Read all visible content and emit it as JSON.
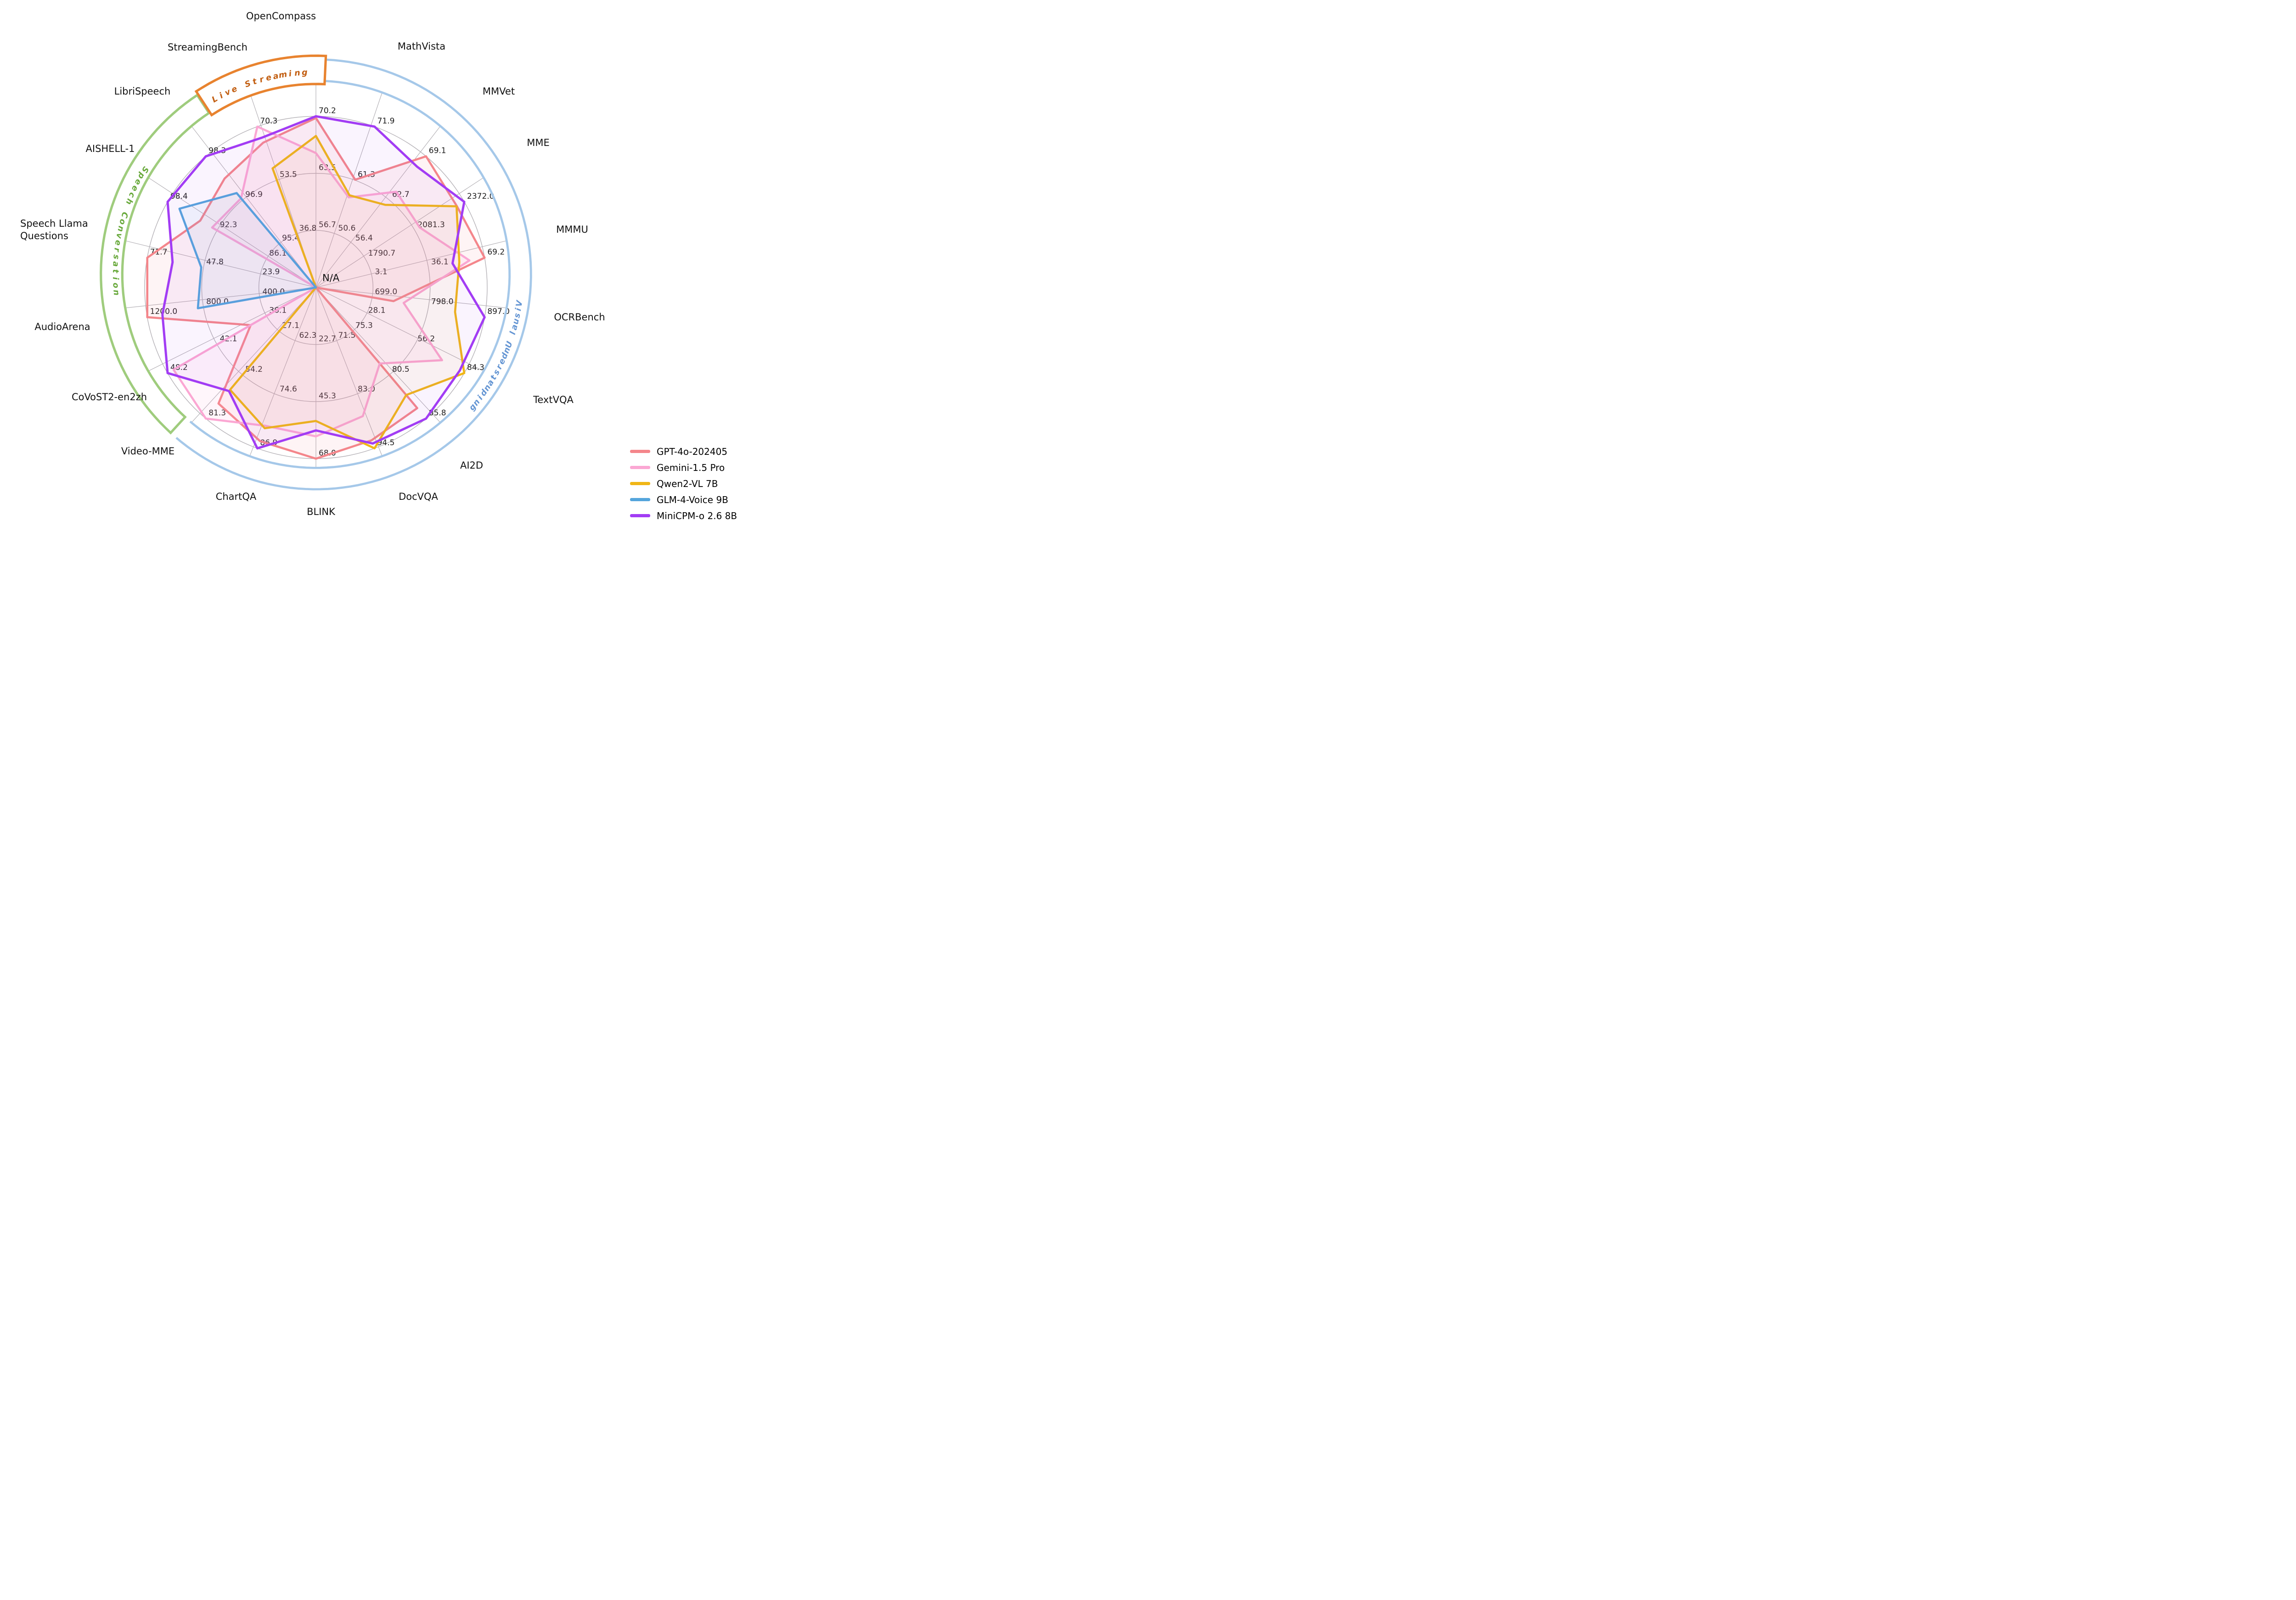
{
  "chart_data": {
    "type": "radar",
    "description": "Benchmark radar comparison across visual, speech and live-streaming tasks",
    "center_label": "N/A",
    "axes": [
      {
        "label": "OpenCompass",
        "ticks": [
          "70.2",
          "63.5",
          "56.7"
        ]
      },
      {
        "label": "MathVista",
        "ticks": [
          "71.9",
          "61.3",
          "50.6"
        ]
      },
      {
        "label": "MMVet",
        "ticks": [
          "69.1",
          "62.7",
          "56.4"
        ]
      },
      {
        "label": "MME",
        "ticks": [
          "2372.0",
          "2081.3",
          "1790.7"
        ]
      },
      {
        "label": "MMMU",
        "ticks": [
          "69.2",
          "36.1",
          "3.1"
        ]
      },
      {
        "label": "OCRBench",
        "ticks": [
          "897.0",
          "798.0",
          "699.0"
        ]
      },
      {
        "label": "TextVQA",
        "ticks": [
          "84.3",
          "56.2",
          "28.1"
        ]
      },
      {
        "label": "AI2D",
        "ticks": [
          "85.8",
          "80.5",
          "75.3"
        ]
      },
      {
        "label": "DocVQA",
        "ticks": [
          "94.5",
          "83.0",
          "71.5"
        ]
      },
      {
        "label": "BLINK",
        "ticks": [
          "68.0",
          "45.3",
          "22.7"
        ]
      },
      {
        "label": "ChartQA",
        "ticks": [
          "86.9",
          "74.6",
          "62.3"
        ]
      },
      {
        "label": "Video-MME",
        "ticks": [
          "81.3",
          "54.2",
          "27.1"
        ]
      },
      {
        "label": "CoVoST2-en2zh",
        "ticks": [
          "48.2",
          "42.1",
          "36.1"
        ]
      },
      {
        "label": "AudioArena",
        "ticks": [
          "1200.0",
          "800.0",
          "400.0"
        ]
      },
      {
        "label": "Speech Llama\nQuestions",
        "ticks": [
          "71.7",
          "47.8",
          "23.9"
        ]
      },
      {
        "label": "AISHELL-1",
        "ticks": [
          "98.4",
          "92.3",
          "86.1"
        ]
      },
      {
        "label": "LibriSpeech",
        "ticks": [
          "98.3",
          "96.9",
          "95.4"
        ]
      },
      {
        "label": "StreamingBench",
        "ticks": [
          "70.3",
          "53.5",
          "36.8"
        ]
      }
    ],
    "series": [
      {
        "name": "GPT-4o-202405",
        "color": "#F4868B",
        "fill_opacity": 0.09,
        "values": [
          0.99,
          0.67,
          1.0,
          0.95,
          1.0,
          0.46,
          0.0,
          0.92,
          0.95,
          1.0,
          0.955,
          0.885,
          0.44,
          1.0,
          1.0,
          0.78,
          0.83,
          0.9
        ]
      },
      {
        "name": "Gemini-1.5 Pro",
        "color": "#FBA7D3",
        "fill_opacity": 0.1,
        "values": [
          0.785,
          0.56,
          0.73,
          0.7,
          0.91,
          0.52,
          0.85,
          0.58,
          0.8,
          0.87,
          0.86,
          1.0,
          0.96,
          0.0,
          0.0,
          0.7,
          0.68,
          1.0
        ]
      },
      {
        "name": "Qwen2-VL 7B",
        "color": "#F0B616",
        "fill_opacity": 0.05,
        "values": [
          0.885,
          0.573,
          0.63,
          0.948,
          0.85,
          0.825,
          1.0,
          0.82,
          1.0,
          0.78,
          0.875,
          0.78,
          0.0,
          0.0,
          0.0,
          0.0,
          0.0,
          0.74
        ]
      },
      {
        "name": "GLM-4-Voice 9B",
        "color": "#54A5DC",
        "fill_opacity": 0.07,
        "values": [
          0.0,
          0.0,
          0.0,
          0.0,
          0.0,
          0.0,
          0.0,
          0.0,
          0.0,
          0.0,
          0.0,
          0.0,
          0.0,
          0.7,
          0.68,
          0.92,
          0.72,
          0.0
        ]
      },
      {
        "name": "MiniCPM-o 2.6 8B",
        "color": "#A23CF4",
        "fill_opacity": 0.06,
        "values": [
          1.0,
          1.0,
          0.92,
          1.0,
          0.81,
          1.0,
          0.97,
          1.0,
          0.97,
          0.835,
          1.0,
          0.79,
          1.0,
          0.91,
          0.85,
          1.0,
          1.0,
          0.93
        ]
      }
    ],
    "groups": [
      {
        "name": "Visual Understanding",
        "arc_color": "#A5C8E9",
        "text_color": "#6495D3",
        "style": "open-arcs"
      },
      {
        "name": "Speech Conversation",
        "arc_color": "#9FCC7D",
        "text_color": "#69A93C",
        "style": "closed-box"
      },
      {
        "name": "Live Streaming",
        "arc_color": "#E8832F",
        "text_color": "#C25E11",
        "style": "closed-box"
      }
    ],
    "grid": {
      "rings": 3,
      "ring_color": "#b4b1b6",
      "spoke_color": "#aeabb0"
    }
  },
  "legend": {
    "entries": [
      {
        "label": "GPT-4o-202405",
        "color": "#F4868B"
      },
      {
        "label": "Gemini-1.5 Pro",
        "color": "#FBA7D3"
      },
      {
        "label": "Qwen2-VL 7B",
        "color": "#F0B616"
      },
      {
        "label": "GLM-4-Voice 9B",
        "color": "#54A5DC"
      },
      {
        "label": "MiniCPM-o 2.6 8B",
        "color": "#A23CF4"
      }
    ]
  }
}
